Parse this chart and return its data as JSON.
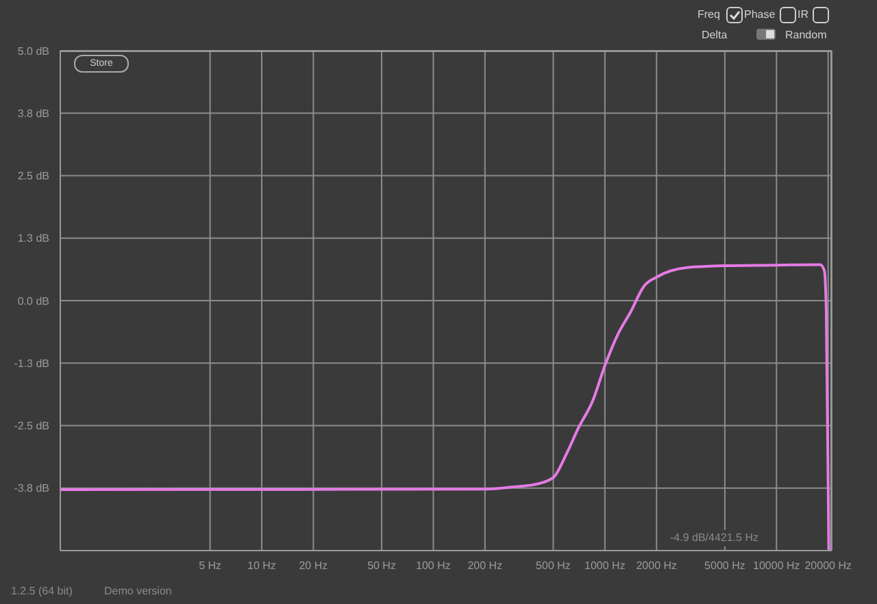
{
  "chart_data": {
    "type": "line",
    "x": [
      0.67,
      200,
      286,
      400,
      500,
      600,
      700,
      850,
      1000,
      1200,
      1400,
      1700,
      2000,
      3000,
      5000,
      10000,
      18000,
      19000,
      19500,
      20200
    ],
    "series": [
      {
        "color": "#e47be4",
        "values": [
          -3.78,
          -3.77,
          -3.73,
          -3.67,
          -3.54,
          -3.05,
          -2.55,
          -2.0,
          -1.3,
          -0.65,
          -0.25,
          0.3,
          0.47,
          0.66,
          0.7,
          0.71,
          0.72,
          0.6,
          -0.2,
          -5.0
        ]
      }
    ],
    "log": "x",
    "xlim": [
      0.67,
      21000
    ],
    "xticks": [
      {
        "value": 5,
        "label": "5 Hz"
      },
      {
        "value": 10,
        "label": "10 Hz"
      },
      {
        "value": 20,
        "label": "20 Hz"
      },
      {
        "value": 50,
        "label": "50 Hz"
      },
      {
        "value": 100,
        "label": "100 Hz"
      },
      {
        "value": 200,
        "label": "200 Hz"
      },
      {
        "value": 500,
        "label": "500 Hz"
      },
      {
        "value": 1000,
        "label": "1000 Hz"
      },
      {
        "value": 2000,
        "label": "2000 Hz"
      },
      {
        "value": 5000,
        "label": "5000 Hz"
      },
      {
        "value": 10000,
        "label": "10000 Hz"
      },
      {
        "value": 20000,
        "label": "20000 Hz"
      }
    ],
    "ylim": [
      -5,
      5
    ],
    "yticks": [
      {
        "value": 5,
        "label": "5.0 dB"
      },
      {
        "value": 3.75,
        "label": "3.8 dB"
      },
      {
        "value": 2.5,
        "label": "2.5 dB"
      },
      {
        "value": 1.25,
        "label": "1.3 dB"
      },
      {
        "value": 0,
        "label": "0.0 dB"
      },
      {
        "value": -1.25,
        "label": "-1.3 dB"
      },
      {
        "value": -2.5,
        "label": "-2.5 dB"
      },
      {
        "value": -3.75,
        "label": "-3.8 dB"
      }
    ],
    "grid": true,
    "legend": false,
    "marker": "none",
    "line_style": "solid",
    "annotations": [
      "-4.9 dB/4421.5 Hz",
      "1.2.5 (64 bit)",
      "Demo version",
      "Freq",
      "Phase",
      "IR",
      "Delta",
      "Random",
      "Store"
    ]
  }
}
